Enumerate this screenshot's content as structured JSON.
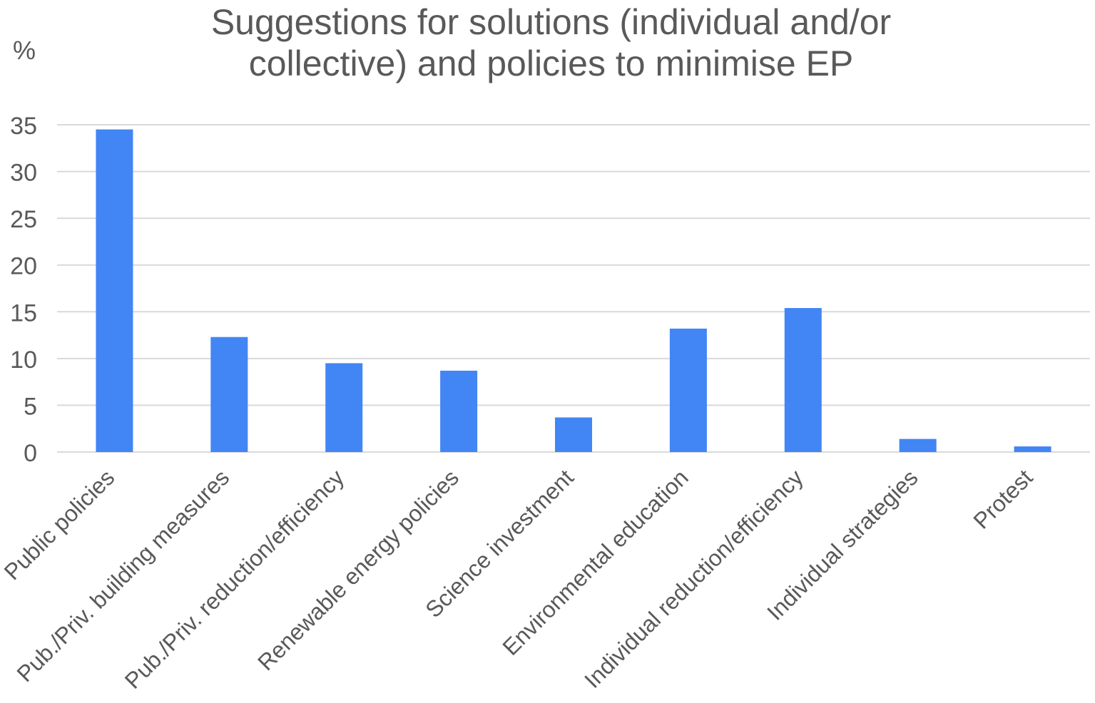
{
  "chart_data": {
    "type": "bar",
    "title": "Suggestions for solutions (individual and/or\ncollective) and policies to minimise EP",
    "ylabel": "%",
    "xlabel": "",
    "ylim": [
      0,
      35
    ],
    "yticks": [
      0,
      5,
      10,
      15,
      20,
      25,
      30,
      35
    ],
    "grid": true,
    "legend": "none",
    "categories": [
      "Public policies",
      "Pub./Priv. building measures",
      "Pub./Priv. reduction/efficiency",
      "Renewable energy policies",
      "Science investment",
      "Environmental education",
      "Individual reduction/efficiency",
      "Individual strategies",
      "Protest"
    ],
    "values": [
      34.5,
      12.3,
      9.5,
      8.7,
      3.7,
      13.2,
      15.4,
      1.4,
      0.6
    ],
    "bar_color": "#4285f4",
    "grid_color": "#d9d9d9",
    "text_color": "#595959"
  }
}
